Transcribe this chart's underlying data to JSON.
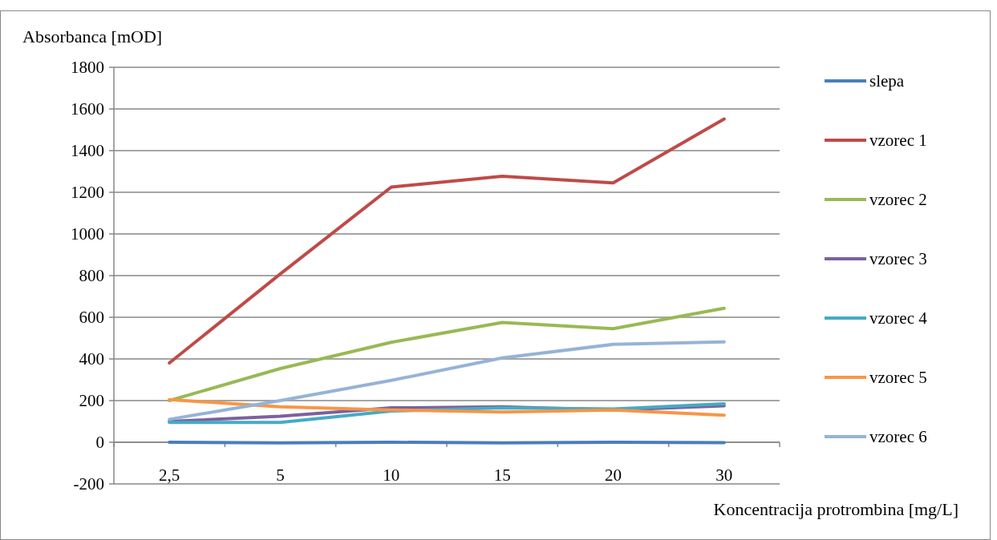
{
  "chart_data": {
    "type": "line",
    "xlabel": "Koncentracija protrombina [mg/L]",
    "ylabel": "Absorbanca [mOD]",
    "categories": [
      "2,5",
      "5",
      "10",
      "15",
      "20",
      "30"
    ],
    "series": [
      {
        "name": "slepa",
        "color": "#4a7ebb",
        "values": [
          0,
          -3,
          0,
          -3,
          0,
          -2
        ]
      },
      {
        "name": "vzorec 1",
        "color": "#be4b48",
        "values": [
          381,
          808,
          1225,
          1277,
          1245,
          1552
        ]
      },
      {
        "name": "vzorec 2",
        "color": "#98b954",
        "values": [
          200,
          354,
          480,
          575,
          545,
          643
        ]
      },
      {
        "name": "vzorec 3",
        "color": "#7d60a0",
        "values": [
          100,
          125,
          165,
          170,
          155,
          175
        ]
      },
      {
        "name": "vzorec 4",
        "color": "#46aac5",
        "values": [
          95,
          95,
          150,
          165,
          160,
          185
        ]
      },
      {
        "name": "vzorec 5",
        "color": "#f79646",
        "values": [
          205,
          170,
          155,
          145,
          155,
          130
        ]
      },
      {
        "name": "vzorec 6",
        "color": "#95b3d7",
        "values": [
          110,
          200,
          297,
          405,
          470,
          482
        ]
      }
    ],
    "ylim": [
      -200,
      1800
    ],
    "yticks": [
      -200,
      0,
      200,
      400,
      600,
      800,
      1000,
      1200,
      1400,
      1600,
      1800
    ],
    "grid": "y",
    "legend": "right"
  }
}
